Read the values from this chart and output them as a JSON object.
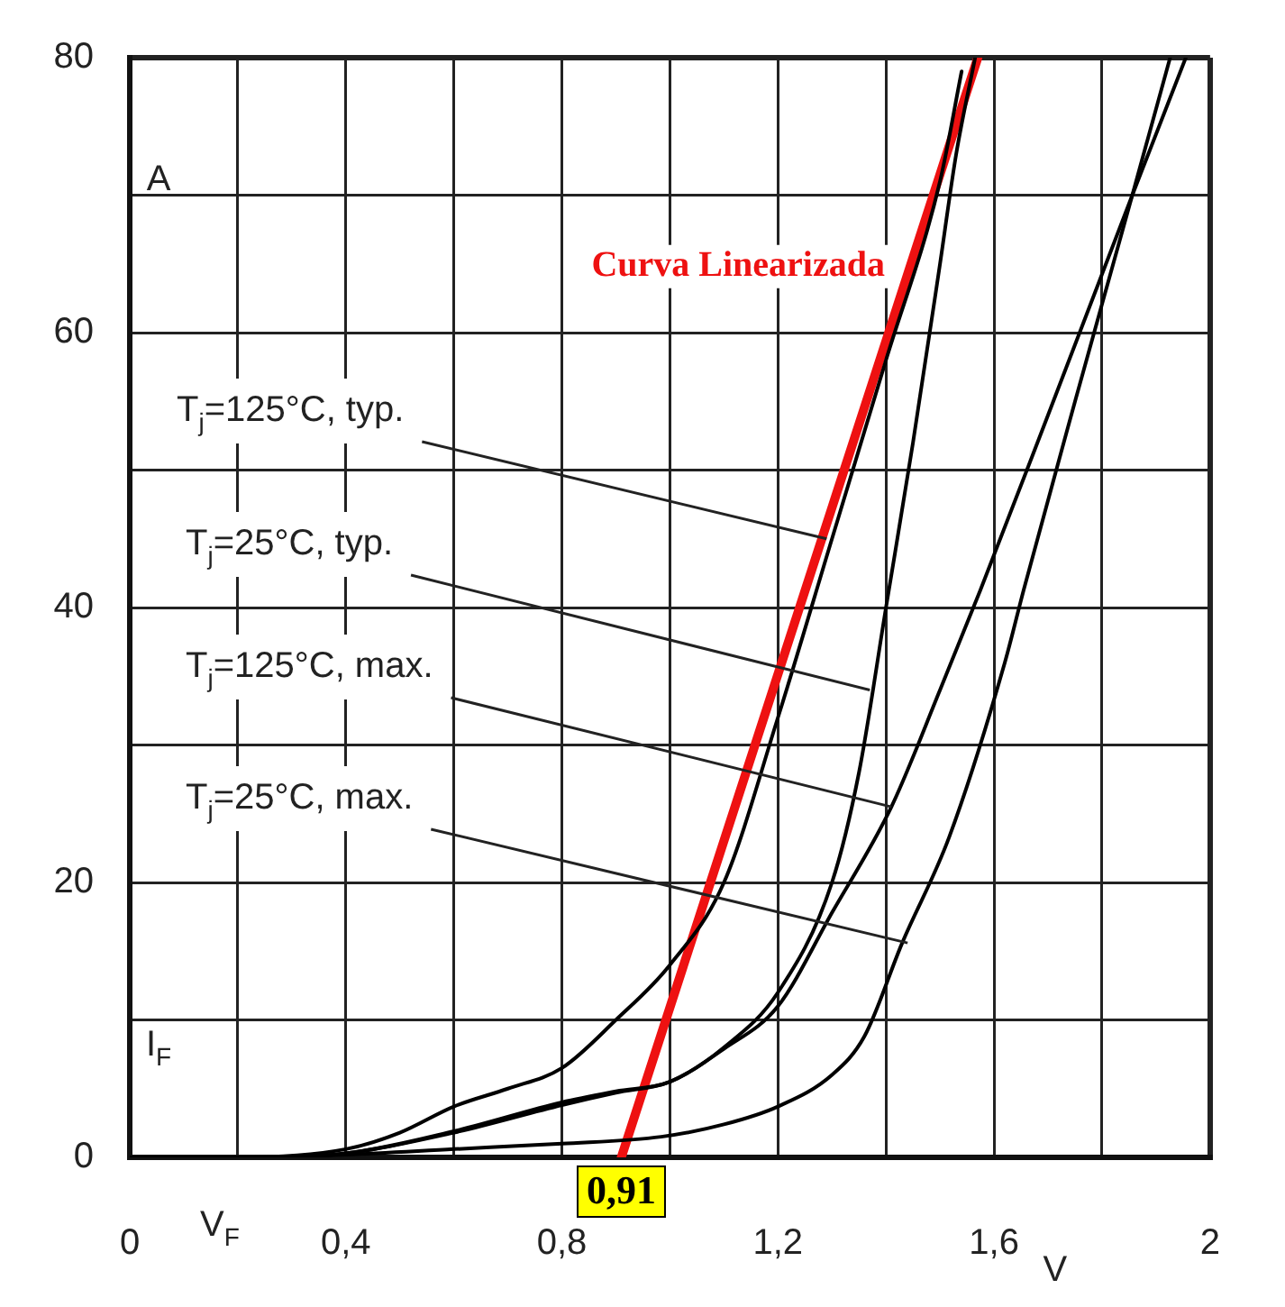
{
  "chart_data": {
    "type": "line",
    "xlabel": "V$_{F}$",
    "ylabel": "I$_{F}$",
    "xlim": [
      0,
      2
    ],
    "ylim": [
      0,
      80
    ],
    "xticks": [
      0,
      {
        "value": 0.2,
        "label": null
      },
      {
        "value": 0.4,
        "label": "0,4"
      },
      {
        "value": 0.6,
        "label": null
      },
      {
        "value": 0.8,
        "label": "0,8"
      },
      {
        "value": 1.0,
        "label": null
      },
      {
        "value": 1.2,
        "label": "1,2"
      },
      {
        "value": 1.4,
        "label": null
      },
      {
        "value": 1.6,
        "label": "1,6"
      },
      {
        "value": 1.8,
        "label": null
      },
      2
    ],
    "yticks": [
      0,
      {
        "value": 10,
        "label": null
      },
      20,
      {
        "value": 30,
        "label": null
      },
      40,
      {
        "value": 50,
        "label": null
      },
      60,
      {
        "value": 70,
        "label": null
      },
      80
    ],
    "grid": true,
    "legend": false,
    "marker": "none",
    "line_style": "solid",
    "series": [
      {
        "color": "#000000",
        "x": [
          0,
          0.2,
          0.4,
          0.5,
          0.6,
          0.7,
          0.8,
          0.9,
          1.0,
          1.1,
          1.2,
          1.3,
          1.4,
          1.5,
          1.54
        ],
        "values": [
          0,
          0,
          0.6,
          1.8,
          3.7,
          5,
          6.5,
          10,
          14,
          20,
          32,
          45,
          58,
          71,
          79
        ]
      },
      {
        "color": "#000000",
        "x": [
          0,
          0.2,
          0.4,
          0.6,
          0.8,
          0.9,
          1.0,
          1.1,
          1.2,
          1.3,
          1.35,
          1.4,
          1.45,
          1.5,
          1.53,
          1.565
        ],
        "values": [
          0,
          0,
          0.3,
          1.9,
          4,
          4.8,
          5.5,
          8,
          12,
          20,
          28,
          40,
          52,
          65,
          73,
          80
        ]
      },
      {
        "color": "#000000",
        "x": [
          0,
          0.2,
          0.4,
          0.6,
          0.8,
          0.9,
          1.0,
          1.1,
          1.2,
          1.3,
          1.41,
          1.5,
          1.575,
          1.7,
          1.856,
          1.955
        ],
        "values": [
          0,
          0,
          0.3,
          1.8,
          3.8,
          4.7,
          5.5,
          7.9,
          11,
          17.8,
          25.5,
          34,
          41.3,
          54,
          70,
          80
        ]
      },
      {
        "color": "#000000",
        "x": [
          0,
          0.2,
          0.4,
          0.6,
          0.8,
          0.984,
          1.1,
          1.2,
          1.3,
          1.36,
          1.43,
          1.517,
          1.62,
          1.655,
          1.75,
          1.856,
          1.926
        ],
        "values": [
          0,
          0,
          0.2,
          0.6,
          1.0,
          1.5,
          2.4,
          3.7,
          6,
          8.8,
          15.6,
          23.3,
          36,
          41.3,
          55,
          70,
          80
        ]
      },
      {
        "name": "Curva Linearizada",
        "color": "#ee1111",
        "x": [
          0.91,
          1.57
        ],
        "values": [
          0,
          80
        ]
      }
    ],
    "annotations": [
      {
        "text": "T$_{j}$=125°C, typ.",
        "x": 1.29,
        "y": 45
      },
      {
        "text": "T$_{j}$=25°C, typ.",
        "x": 1.37,
        "y": 34
      },
      {
        "text": "T$_{j}$=125°C, max.",
        "x": 1.41,
        "y": 25.5
      },
      {
        "text": "T$_{j}$=25°C, max.",
        "x": 1.44,
        "y": 15.6
      },
      {
        "text": "0,91",
        "x": 0.91,
        "y": 0
      },
      "A",
      "V"
    ]
  }
}
